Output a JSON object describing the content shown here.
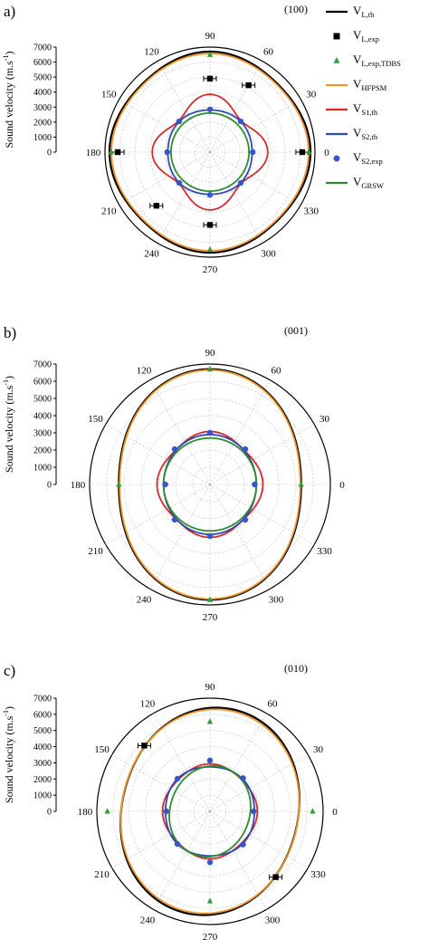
{
  "figure": {
    "legend": [
      {
        "key": "VLth",
        "base": "V",
        "sub": "L,th",
        "color": "#000000",
        "marker": "line"
      },
      {
        "key": "VLexp",
        "base": "V",
        "sub": "L,exp",
        "color": "#000000",
        "marker": "square"
      },
      {
        "key": "VLtdbs",
        "base": "V",
        "sub": "L,exp,TDBS",
        "color": "#3a9b3a",
        "marker": "triangle"
      },
      {
        "key": "VHF",
        "base": "V",
        "sub": "HFPSM",
        "color": "#f0962a",
        "marker": "line"
      },
      {
        "key": "VS1th",
        "base": "V",
        "sub": "S1,th",
        "color": "#d42a30",
        "marker": "line"
      },
      {
        "key": "VS2th",
        "base": "V",
        "sub": "S2,th",
        "color": "#2e49b5",
        "marker": "line"
      },
      {
        "key": "VS2exp",
        "base": "V",
        "sub": "S2,exp",
        "color": "#3a55c8",
        "marker": "circle"
      },
      {
        "key": "VGRSW",
        "base": "V",
        "sub": "GRSW",
        "color": "#2e8b2e",
        "marker": "line"
      }
    ]
  },
  "chart_data": [
    {
      "type": "polar",
      "panel_label": "a)",
      "plane": "(100)",
      "ylabel": "Sound velocity (m.s",
      "ylabel_sup": "-1",
      "ylabel_close": ")",
      "rlim": [
        0,
        7000
      ],
      "r_ticks": [
        0,
        1000,
        2000,
        3000,
        4000,
        5000,
        6000,
        7000
      ],
      "angle_ticks": [
        0,
        30,
        60,
        90,
        120,
        150,
        180,
        210,
        240,
        270,
        300,
        330
      ],
      "grid": true,
      "legend_position": "right",
      "series": [
        {
          "key": "VLth",
          "kind": "curve",
          "a0": 6550,
          "a2": 0,
          "a4": 150,
          "a4_phase": 0
        },
        {
          "key": "VHF",
          "kind": "curve",
          "a0": 6450,
          "a2": 0,
          "a4": 120,
          "a4_phase": 0
        },
        {
          "key": "VS1th",
          "kind": "curve",
          "a0": 3400,
          "a2": 0,
          "a4": 450,
          "a4_phase": 0
        },
        {
          "key": "VS2th",
          "kind": "curve",
          "a0": 2850,
          "a2": 0,
          "a4": -40,
          "a4_phase": 0
        },
        {
          "key": "VGRSW",
          "kind": "curve",
          "a0": 2600,
          "a2": 0,
          "a4": 0,
          "a4_phase": 0
        },
        {
          "key": "VLexp",
          "kind": "points",
          "points": [
            {
              "angle": 0,
              "r": 6150
            },
            {
              "angle": 60,
              "r": 5150
            },
            {
              "angle": 90,
              "r": 4900
            },
            {
              "angle": 180,
              "r": 6150
            },
            {
              "angle": 225,
              "r": 5050
            },
            {
              "angle": 270,
              "r": 4850
            }
          ]
        },
        {
          "key": "VLtdbs",
          "kind": "points",
          "points": [
            {
              "angle": 0,
              "r": 6600
            },
            {
              "angle": 90,
              "r": 6500
            },
            {
              "angle": 180,
              "r": 6600
            },
            {
              "angle": 270,
              "r": 6500
            }
          ]
        },
        {
          "key": "VS2exp",
          "kind": "points",
          "points": [
            {
              "angle": 0,
              "r": 2850
            },
            {
              "angle": 45,
              "r": 2900
            },
            {
              "angle": 90,
              "r": 2850
            },
            {
              "angle": 135,
              "r": 2900
            },
            {
              "angle": 180,
              "r": 2850
            },
            {
              "angle": 225,
              "r": 2900
            },
            {
              "angle": 270,
              "r": 2850
            },
            {
              "angle": 315,
              "r": 2900
            }
          ]
        }
      ]
    },
    {
      "type": "polar",
      "panel_label": "b)",
      "plane": "(001)",
      "ylabel": "Sound velocity (m.s",
      "ylabel_sup": "-1",
      "ylabel_close": ")",
      "rlim": [
        0,
        7000
      ],
      "r_ticks": [
        0,
        1000,
        2000,
        3000,
        4000,
        5000,
        6000,
        7000
      ],
      "angle_ticks": [
        0,
        30,
        60,
        90,
        120,
        150,
        180,
        210,
        240,
        270,
        300,
        330
      ],
      "grid": true,
      "series": [
        {
          "key": "VLth",
          "kind": "curve",
          "a0": 6000,
          "a2": -700,
          "a4": 0,
          "a4_phase": 0
        },
        {
          "key": "VHF",
          "kind": "curve",
          "a0": 5950,
          "a2": -700,
          "a4": 0,
          "a4_phase": 0
        },
        {
          "key": "VS1th",
          "kind": "curve",
          "a0": 2950,
          "a2": 0,
          "a4": 130,
          "a4_phase": 0
        },
        {
          "key": "VS2th",
          "kind": "curve",
          "a0": 2800,
          "a2": -100,
          "a4": 0,
          "a4_phase": 0
        },
        {
          "key": "VGRSW",
          "kind": "curve",
          "a0": 2700,
          "a2": 0,
          "a4": 0,
          "a4_phase": 0
        },
        {
          "key": "VLtdbs",
          "kind": "points",
          "points": [
            {
              "angle": 0,
              "r": 5300
            },
            {
              "angle": 90,
              "r": 6700
            },
            {
              "angle": 180,
              "r": 5300
            },
            {
              "angle": 270,
              "r": 6700
            }
          ]
        },
        {
          "key": "VS2exp",
          "kind": "points",
          "points": [
            {
              "angle": 0,
              "r": 2600
            },
            {
              "angle": 45,
              "r": 2900
            },
            {
              "angle": 90,
              "r": 3000
            },
            {
              "angle": 135,
              "r": 2900
            },
            {
              "angle": 180,
              "r": 2600
            },
            {
              "angle": 225,
              "r": 2900
            },
            {
              "angle": 270,
              "r": 3000
            },
            {
              "angle": 315,
              "r": 2900
            }
          ]
        }
      ]
    },
    {
      "type": "polar",
      "panel_label": "c)",
      "plane": "(010)",
      "ylabel": "Sound velocity (m.s",
      "ylabel_sup": "-1",
      "ylabel_close": ")",
      "rlim": [
        0,
        7000
      ],
      "r_ticks": [
        0,
        1000,
        2000,
        3000,
        4000,
        5000,
        6000,
        7000
      ],
      "angle_ticks": [
        0,
        30,
        60,
        90,
        120,
        150,
        180,
        210,
        240,
        270,
        300,
        330
      ],
      "grid": true,
      "series": [
        {
          "key": "VLth",
          "kind": "curve",
          "a0": 5950,
          "a2": -450,
          "a4": 0,
          "a4_phase": 0,
          "skew": 250
        },
        {
          "key": "VHF",
          "kind": "curve",
          "a0": 5900,
          "a2": -400,
          "a4": 0,
          "a4_phase": 0,
          "skew": 200
        },
        {
          "key": "VS1th",
          "kind": "curve",
          "a0": 2850,
          "a2": 0,
          "a4": 80,
          "a4_phase": 0
        },
        {
          "key": "VS2th",
          "kind": "curve",
          "a0": 2800,
          "a2": 0,
          "a4": -50,
          "a4_phase": 0
        },
        {
          "key": "VGRSW",
          "kind": "curve",
          "a0": 2650,
          "a2": -150,
          "a4": 0,
          "a4_phase": 0,
          "skew": 120
        },
        {
          "key": "VLexp",
          "kind": "points",
          "points": [
            {
              "angle": 135,
              "r": 5750
            },
            {
              "angle": 315,
              "r": 5750
            }
          ]
        },
        {
          "key": "VLtdbs",
          "kind": "points",
          "points": [
            {
              "angle": 0,
              "r": 6350
            },
            {
              "angle": 90,
              "r": 5550
            },
            {
              "angle": 180,
              "r": 6350
            },
            {
              "angle": 270,
              "r": 5550
            }
          ]
        },
        {
          "key": "VS2exp",
          "kind": "points",
          "points": [
            {
              "angle": 0,
              "r": 2700
            },
            {
              "angle": 45,
              "r": 2900
            },
            {
              "angle": 90,
              "r": 3150
            },
            {
              "angle": 135,
              "r": 2850
            },
            {
              "angle": 180,
              "r": 2700
            },
            {
              "angle": 225,
              "r": 2850
            },
            {
              "angle": 270,
              "r": 3150
            },
            {
              "angle": 315,
              "r": 2900
            }
          ]
        }
      ]
    }
  ]
}
